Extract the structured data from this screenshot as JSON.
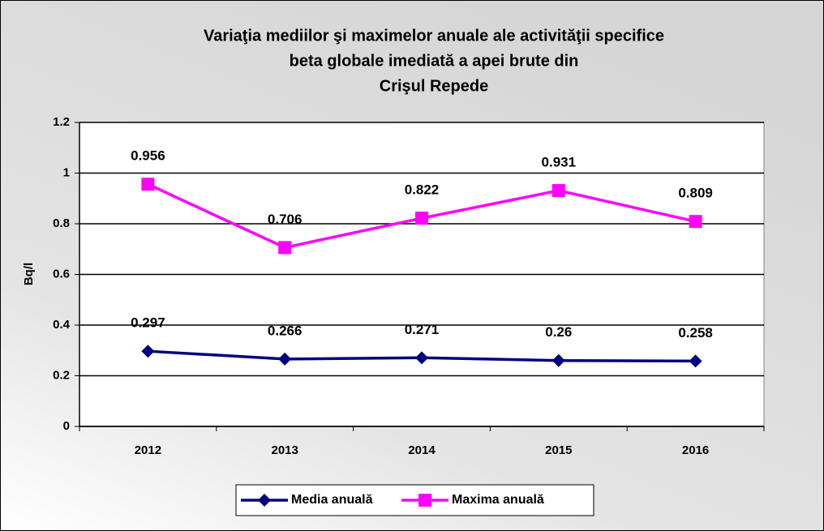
{
  "chart_data": {
    "type": "line",
    "title": [
      "Variaţia mediilor şi maximelor anuale ale activităţii specifice",
      "beta globale imediată a apei brute din",
      "Crişul Repede"
    ],
    "y_label": "Bq/l",
    "categories": [
      "2012",
      "2013",
      "2014",
      "2015",
      "2016"
    ],
    "series": [
      {
        "name": "Media anuală",
        "color": "#000080",
        "marker": "diamond",
        "values": [
          0.297,
          0.266,
          0.271,
          0.26,
          0.258
        ]
      },
      {
        "name": "Maxima anuală",
        "color": "#ff00ff",
        "marker": "square",
        "values": [
          0.956,
          0.706,
          0.822,
          0.931,
          0.809
        ]
      }
    ],
    "ylim": [
      0,
      1.2
    ],
    "yticks": [
      0,
      0.2,
      0.4,
      0.6,
      0.8,
      1,
      1.2
    ],
    "grid": true,
    "legend": "bottom"
  }
}
